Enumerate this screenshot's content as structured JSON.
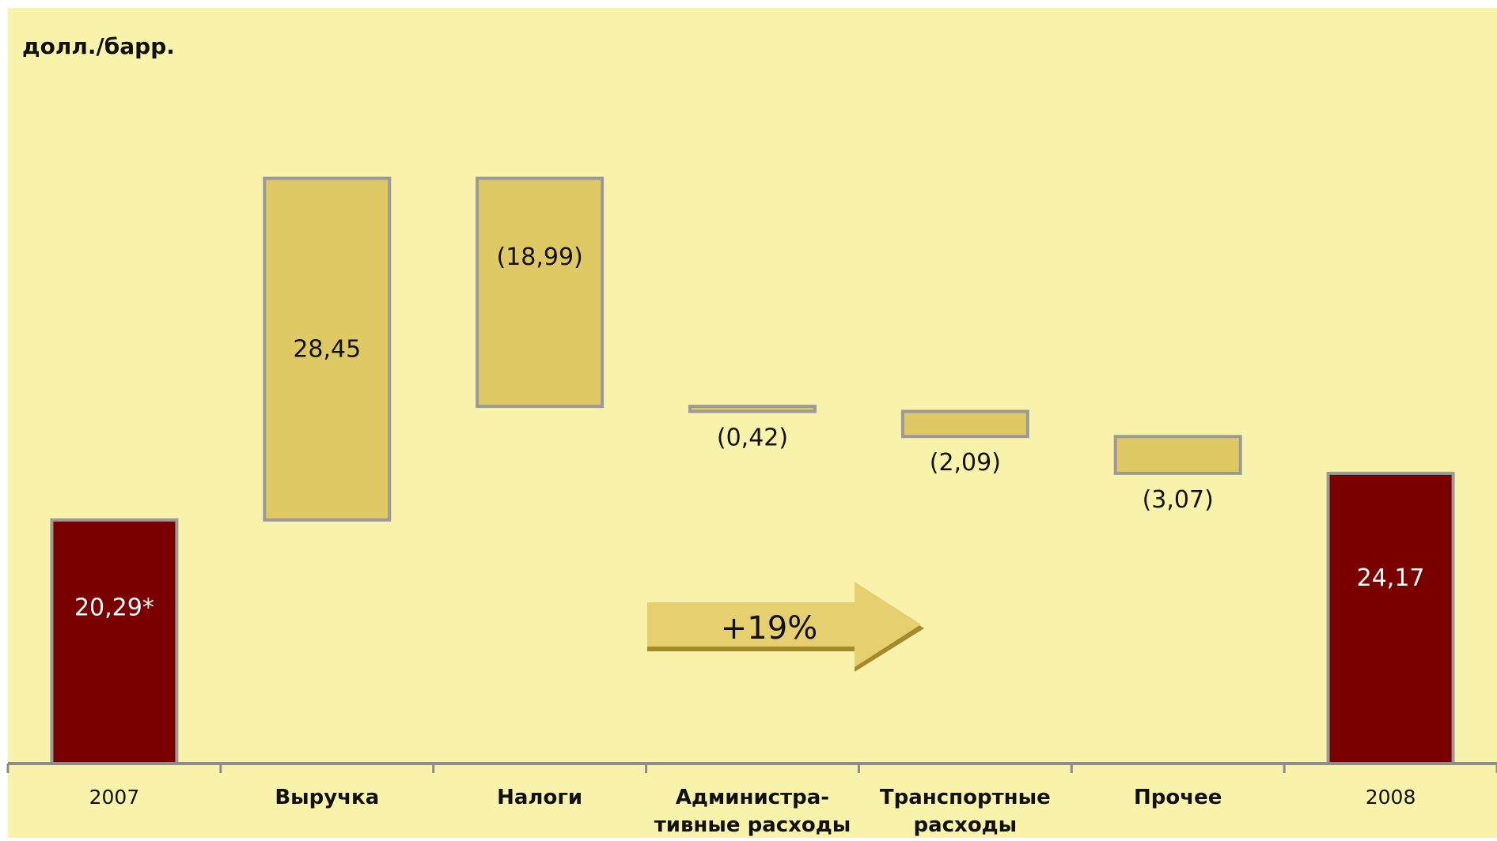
{
  "chart_data": {
    "type": "bar",
    "subtype": "waterfall",
    "unit_label": "долл./барр.",
    "categories": [
      "2007",
      "Выручка",
      "Налоги",
      "Администра-\nтивные расходы",
      "Транспортные\nрасходы",
      "Прочее",
      "2008"
    ],
    "values": [
      20.29,
      28.45,
      -18.99,
      -0.42,
      -2.09,
      -3.07,
      24.17
    ],
    "value_labels": [
      "20,29*",
      "28,45",
      "(18,99)",
      "(0,42)",
      "(2,09)",
      "(3,07)",
      "24,17"
    ],
    "bar_roles": [
      "total",
      "increase",
      "decrease",
      "decrease",
      "decrease",
      "decrease",
      "total"
    ],
    "ylim": [
      0,
      50
    ],
    "grid": false,
    "annotation": "+19%"
  },
  "colors": {
    "background": "#f8f2ab",
    "total_bar": "#7a0000",
    "delta_bar": "#dfc965",
    "bar_border": "#9a9a9a",
    "arrow": "#e6cf6e",
    "arrow_shadow": "#a48a2a",
    "axis": "#8c8c8c",
    "text": "#111111"
  }
}
